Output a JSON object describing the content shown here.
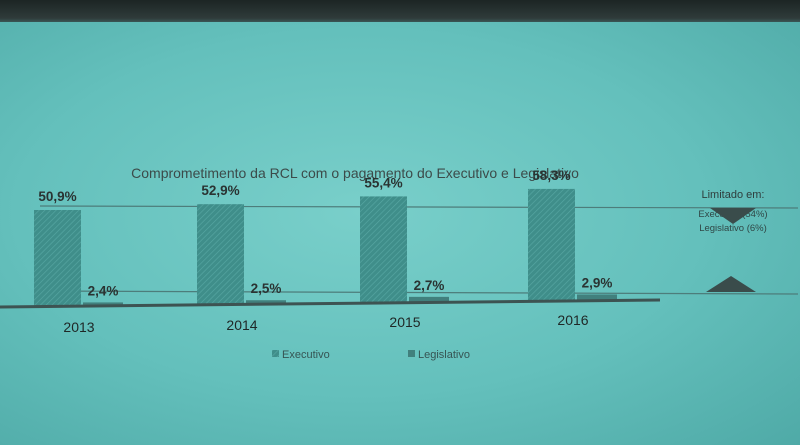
{
  "chart_data": {
    "type": "bar",
    "title": "Comprometimento da RCL com o pagamento do Executivo e Legislativo",
    "categories": [
      "2013",
      "2014",
      "2015",
      "2016"
    ],
    "series": [
      {
        "name": "Executivo",
        "values": [
          50.9,
          52.9,
          55.4,
          58.3
        ],
        "labels": [
          "50,9%",
          "52,9%",
          "55,4%",
          "58,3%"
        ],
        "color": "#3f8f8b"
      },
      {
        "name": "Legislativo",
        "values": [
          2.4,
          2.5,
          2.7,
          2.9
        ],
        "labels": [
          "2,4%",
          "2,5%",
          "2,7%",
          "2,9%"
        ],
        "color": "#41807d"
      }
    ],
    "ylim": [
      0,
      60
    ],
    "legend_position": "bottom",
    "limits": {
      "title": "Limitado em:",
      "items": [
        {
          "label": "Executivo (54%)",
          "value": 54
        },
        {
          "label": "Legislativo (6%)",
          "value": 6
        }
      ]
    }
  }
}
